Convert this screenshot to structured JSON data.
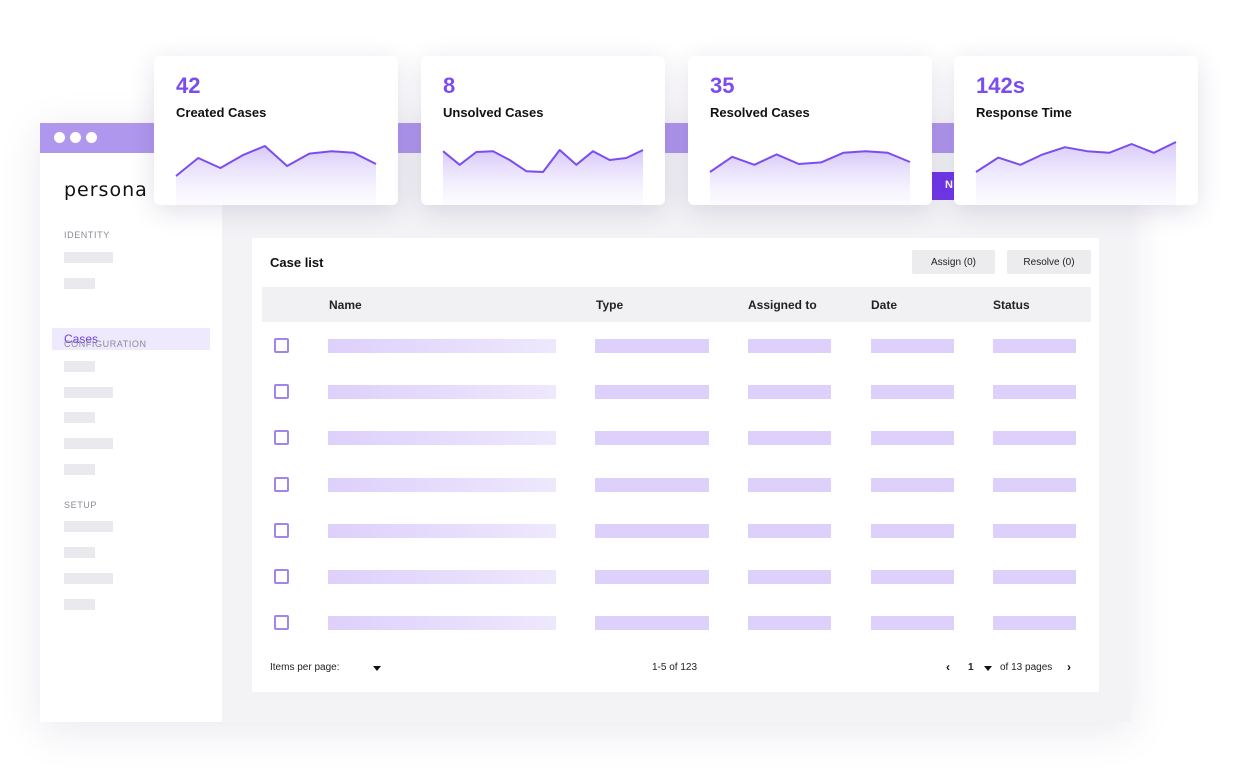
{
  "brand": {
    "logo": "persona",
    "accent": "#7c4dee",
    "titlebar_color": "#b097ee"
  },
  "stats": [
    {
      "value": "42",
      "label": "Created Cases",
      "sparkline": [
        0.1,
        0.55,
        0.3,
        0.62,
        0.85,
        0.35,
        0.66,
        0.72,
        0.68,
        0.4
      ]
    },
    {
      "value": "8",
      "label": "Unsolved Cases",
      "sparkline": [
        0.72,
        0.38,
        0.7,
        0.72,
        0.5,
        0.22,
        0.2,
        0.75,
        0.38,
        0.72,
        0.5,
        0.55,
        0.75
      ]
    },
    {
      "value": "35",
      "label": "Resolved Cases",
      "sparkline": [
        0.2,
        0.58,
        0.38,
        0.64,
        0.4,
        0.44,
        0.68,
        0.72,
        0.68,
        0.45
      ]
    },
    {
      "value": "142s",
      "label": "Response Time",
      "sparkline": [
        0.2,
        0.56,
        0.38,
        0.64,
        0.82,
        0.72,
        0.68,
        0.9,
        0.68,
        0.95
      ]
    }
  ],
  "sidebar": {
    "sections": [
      {
        "title": "IDENTITY"
      },
      {
        "title": "CONFIGURATION"
      },
      {
        "title": "SETUP"
      }
    ],
    "active_item": "Cases"
  },
  "toolbar": {
    "new_button_label": "N"
  },
  "case_list": {
    "title": "Case list",
    "assign_label": "Assign (0)",
    "resolve_label": "Resolve (0)",
    "columns": [
      "Name",
      "Type",
      "Assigned to",
      "Date",
      "Status"
    ],
    "footer": {
      "items_per_page_label": "Items per page:",
      "range_label": "1-5 of 123",
      "current_page": "1",
      "pages_label": "of 13 pages",
      "prev_icon": "chevron-left-icon",
      "next_icon": "chevron-right-icon"
    }
  }
}
